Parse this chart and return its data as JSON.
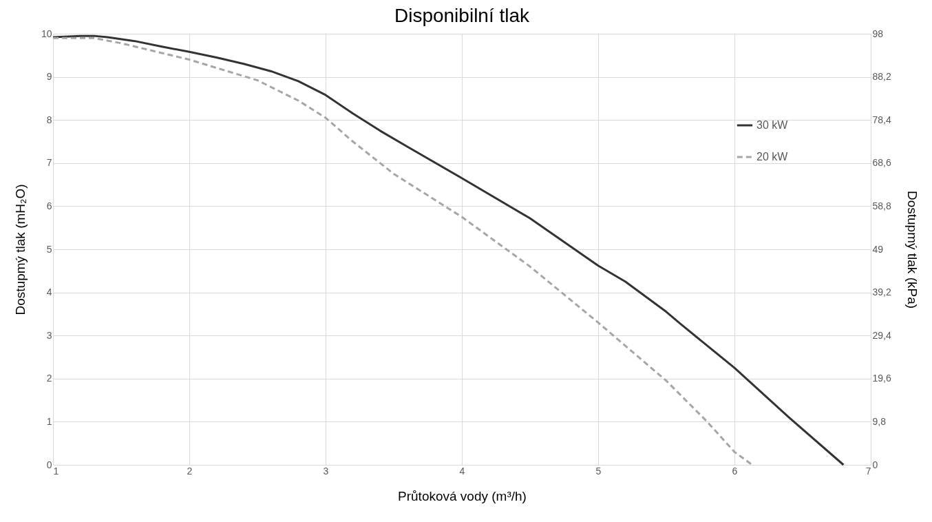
{
  "chart_data": {
    "type": "line",
    "title": "Disponibilní tlak",
    "xlabel": "Průtoková vody (m³/h)",
    "ylabel": "Dostupmý tlak (mH₂O)",
    "y2label": "Dostupmý tlak (kPa)",
    "xlim": [
      1,
      7
    ],
    "xticks": [
      1,
      2,
      3,
      4,
      5,
      6,
      7
    ],
    "ylim": [
      0,
      10
    ],
    "yticks": [
      0,
      1,
      2,
      3,
      4,
      5,
      6,
      7,
      8,
      9,
      10
    ],
    "y2lim": [
      0,
      98
    ],
    "y2ticks": [
      0,
      {
        "value": 9.8,
        "label": "9,8"
      },
      {
        "value": 19.6,
        "label": "19,6"
      },
      {
        "value": 29.4,
        "label": "29,4"
      },
      {
        "value": 39.2,
        "label": "39,2"
      },
      49,
      {
        "value": 58.8,
        "label": "58,8"
      },
      {
        "value": 68.6,
        "label": "68,6"
      },
      {
        "value": 78.4,
        "label": "78,4"
      },
      {
        "value": 88.2,
        "label": "88,2"
      },
      98
    ],
    "grid": true,
    "legend": "top right",
    "marker": "none",
    "series": [
      {
        "name": "30 kW",
        "color": "#333333",
        "line_style": "solid",
        "x": [
          1,
          1.2,
          1.3,
          1.4,
          1.6,
          1.8,
          2.0,
          2.2,
          2.4,
          2.6,
          2.8,
          3.0,
          3.2,
          3.4,
          3.6,
          4.0,
          4.5,
          5.0,
          5.2,
          5.5,
          5.6,
          6.0,
          6.4,
          6.8
        ],
        "values": [
          9.92,
          9.95,
          9.95,
          9.92,
          9.83,
          9.7,
          9.58,
          9.45,
          9.3,
          9.13,
          8.9,
          8.58,
          8.15,
          7.75,
          7.38,
          6.65,
          5.72,
          4.62,
          4.25,
          3.55,
          3.28,
          2.25,
          1.1,
          0
        ]
      },
      {
        "name": "20 kW",
        "color": "#a6a6a6",
        "line_style": "dashed",
        "x": [
          1,
          1.3,
          1.5,
          2.0,
          2.5,
          2.8,
          3.0,
          3.2,
          3.5,
          4.0,
          4.5,
          5.0,
          5.5,
          5.8,
          6.0,
          6.13
        ],
        "values": [
          9.9,
          9.9,
          9.78,
          9.4,
          8.92,
          8.45,
          8.05,
          7.5,
          6.75,
          5.75,
          4.6,
          3.3,
          1.95,
          1.0,
          0.3,
          0
        ]
      }
    ]
  }
}
